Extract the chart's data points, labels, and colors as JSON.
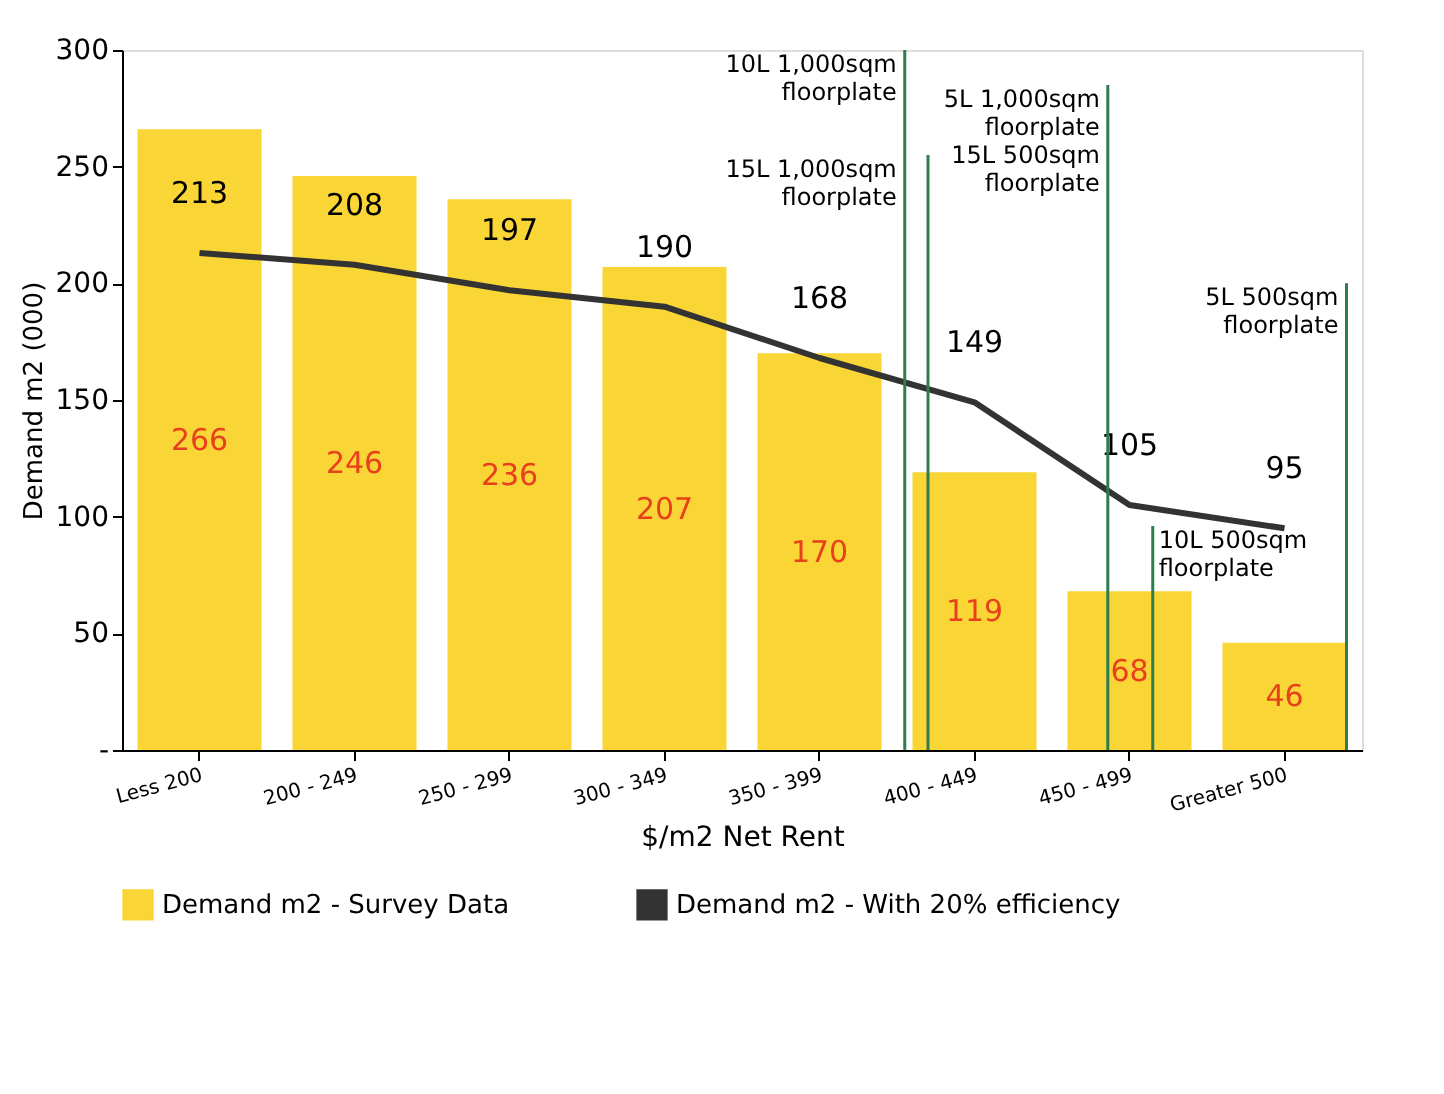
{
  "chart_data": {
    "type": "bar",
    "xlabel": "$/m2 Net Rent",
    "ylabel": "Demand m2 (000)",
    "categories": [
      "Less 200",
      "200 - 249",
      "250 - 299",
      "300 - 349",
      "350 - 399",
      "400 - 449",
      "450 - 499",
      "Greater 500"
    ],
    "series": [
      {
        "name": "Demand m2 - Survey Data",
        "color": "#f9d535",
        "values": [
          266,
          246,
          236,
          207,
          170,
          119,
          68,
          46
        ]
      },
      {
        "name": "Demand m2 - With 20% efficiency",
        "type": "line",
        "color": "#333333",
        "values": [
          213,
          208,
          197,
          190,
          168,
          149,
          105,
          95
        ]
      }
    ],
    "data_labels": true,
    "ylim": [
      0,
      300
    ],
    "yticks": [
      {
        "value": 0,
        "label": "-"
      },
      50,
      100,
      150,
      200,
      250,
      300
    ],
    "ref_lines": [
      {
        "axis": "x",
        "value": "400 - 449",
        "label": "10L 1,000sqm\nfloorplate",
        "color": "#2e7d4f"
      },
      {
        "axis": "x",
        "value": "400 - 449",
        "label": "15L 1,000sqm\nfloorplate",
        "color": "#2e7d4f"
      },
      {
        "axis": "x",
        "value": "450 - 499",
        "label": "5L 1,000sqm\nfloorplate\n15L 500sqm\nfloorplate",
        "color": "#2e7d4f"
      },
      {
        "axis": "x",
        "value": "450 - 499",
        "label": "10L 500sqm\nfloorplate",
        "color": "#2e7d4f"
      },
      {
        "axis": "x",
        "value": "Greater 500",
        "label": "5L 500sqm\nfloorplate",
        "color": "#2e7d4f"
      }
    ],
    "grid": false,
    "legend": "bottom"
  }
}
